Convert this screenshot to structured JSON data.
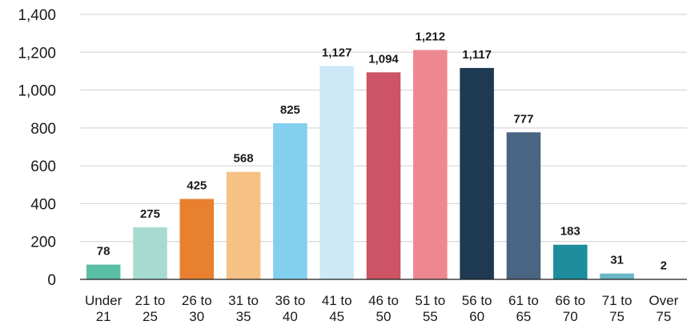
{
  "chart_data": {
    "type": "bar",
    "title": "",
    "xlabel": "",
    "ylabel": "",
    "categories": [
      [
        "Under",
        "21"
      ],
      [
        "21 to",
        "25"
      ],
      [
        "26 to",
        "30"
      ],
      [
        "31 to",
        "35"
      ],
      [
        "36 to",
        "40"
      ],
      [
        "41 to",
        "45"
      ],
      [
        "46 to",
        "50"
      ],
      [
        "51 to",
        "55"
      ],
      [
        "56 to",
        "60"
      ],
      [
        "61 to",
        "65"
      ],
      [
        "66 to",
        "70"
      ],
      [
        "71 to",
        "75"
      ],
      [
        "Over",
        "75"
      ]
    ],
    "values": [
      78,
      275,
      425,
      568,
      825,
      1127,
      1094,
      1212,
      1117,
      777,
      183,
      31,
      2
    ],
    "value_labels": [
      "78",
      "275",
      "425",
      "568",
      "825",
      "1,127",
      "1,094",
      "1,212",
      "1,117",
      "777",
      "183",
      "31",
      "2"
    ],
    "ylim": [
      0,
      1400
    ],
    "yticks": [
      0,
      200,
      400,
      600,
      800,
      1000,
      1200,
      1400
    ],
    "ytick_labels": [
      "0",
      "200",
      "400",
      "600",
      "800",
      "1,000",
      "1,200",
      "1,400"
    ],
    "grid": true,
    "legend": "none",
    "colors": [
      "#5bbfa6",
      "#a7dbd1",
      "#e8802f",
      "#f6c184",
      "#83cff0",
      "#cde9f8",
      "#cc5464",
      "#ee8890",
      "#1e3a52",
      "#4a6583",
      "#1d8c9c",
      "#6ab7c6",
      "#b8d8de"
    ]
  }
}
